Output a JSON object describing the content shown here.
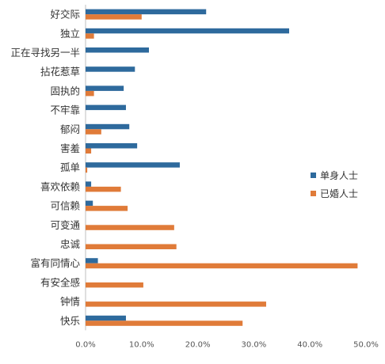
{
  "chart_data": {
    "type": "bar",
    "orientation": "horizontal",
    "categories": [
      "好交际",
      "独立",
      "正在寻找另一半",
      "拈花惹草",
      "固执的",
      "不牢靠",
      "郁闷",
      "害羞",
      "孤单",
      "喜欢依赖",
      "可信赖",
      "可变通",
      "忠诚",
      "富有同情心",
      "有安全感",
      "钟情",
      "快乐"
    ],
    "series": [
      {
        "name": "单身人士",
        "color": "#2e6a9d",
        "values": [
          21.5,
          36.3,
          11.3,
          8.8,
          6.8,
          7.2,
          7.8,
          9.2,
          16.8,
          1.0,
          1.3,
          0.0,
          0.0,
          2.2,
          0.0,
          0.0,
          7.2
        ]
      },
      {
        "name": "已婚人士",
        "color": "#e07b39",
        "values": [
          10.0,
          1.5,
          0.0,
          0.0,
          1.5,
          0.0,
          2.8,
          1.0,
          0.3,
          6.3,
          7.5,
          15.8,
          16.2,
          48.5,
          10.3,
          32.2,
          28.0
        ]
      }
    ],
    "xlim": [
      0,
      50
    ],
    "xticks": [
      0,
      10,
      20,
      30,
      40,
      50
    ],
    "xtick_labels": [
      "0.0%",
      "10.0%",
      "20.0%",
      "30.0%",
      "40.0%",
      "50.0%"
    ],
    "title": "",
    "xlabel": "",
    "ylabel": "",
    "grid": false,
    "legend": "right"
  }
}
